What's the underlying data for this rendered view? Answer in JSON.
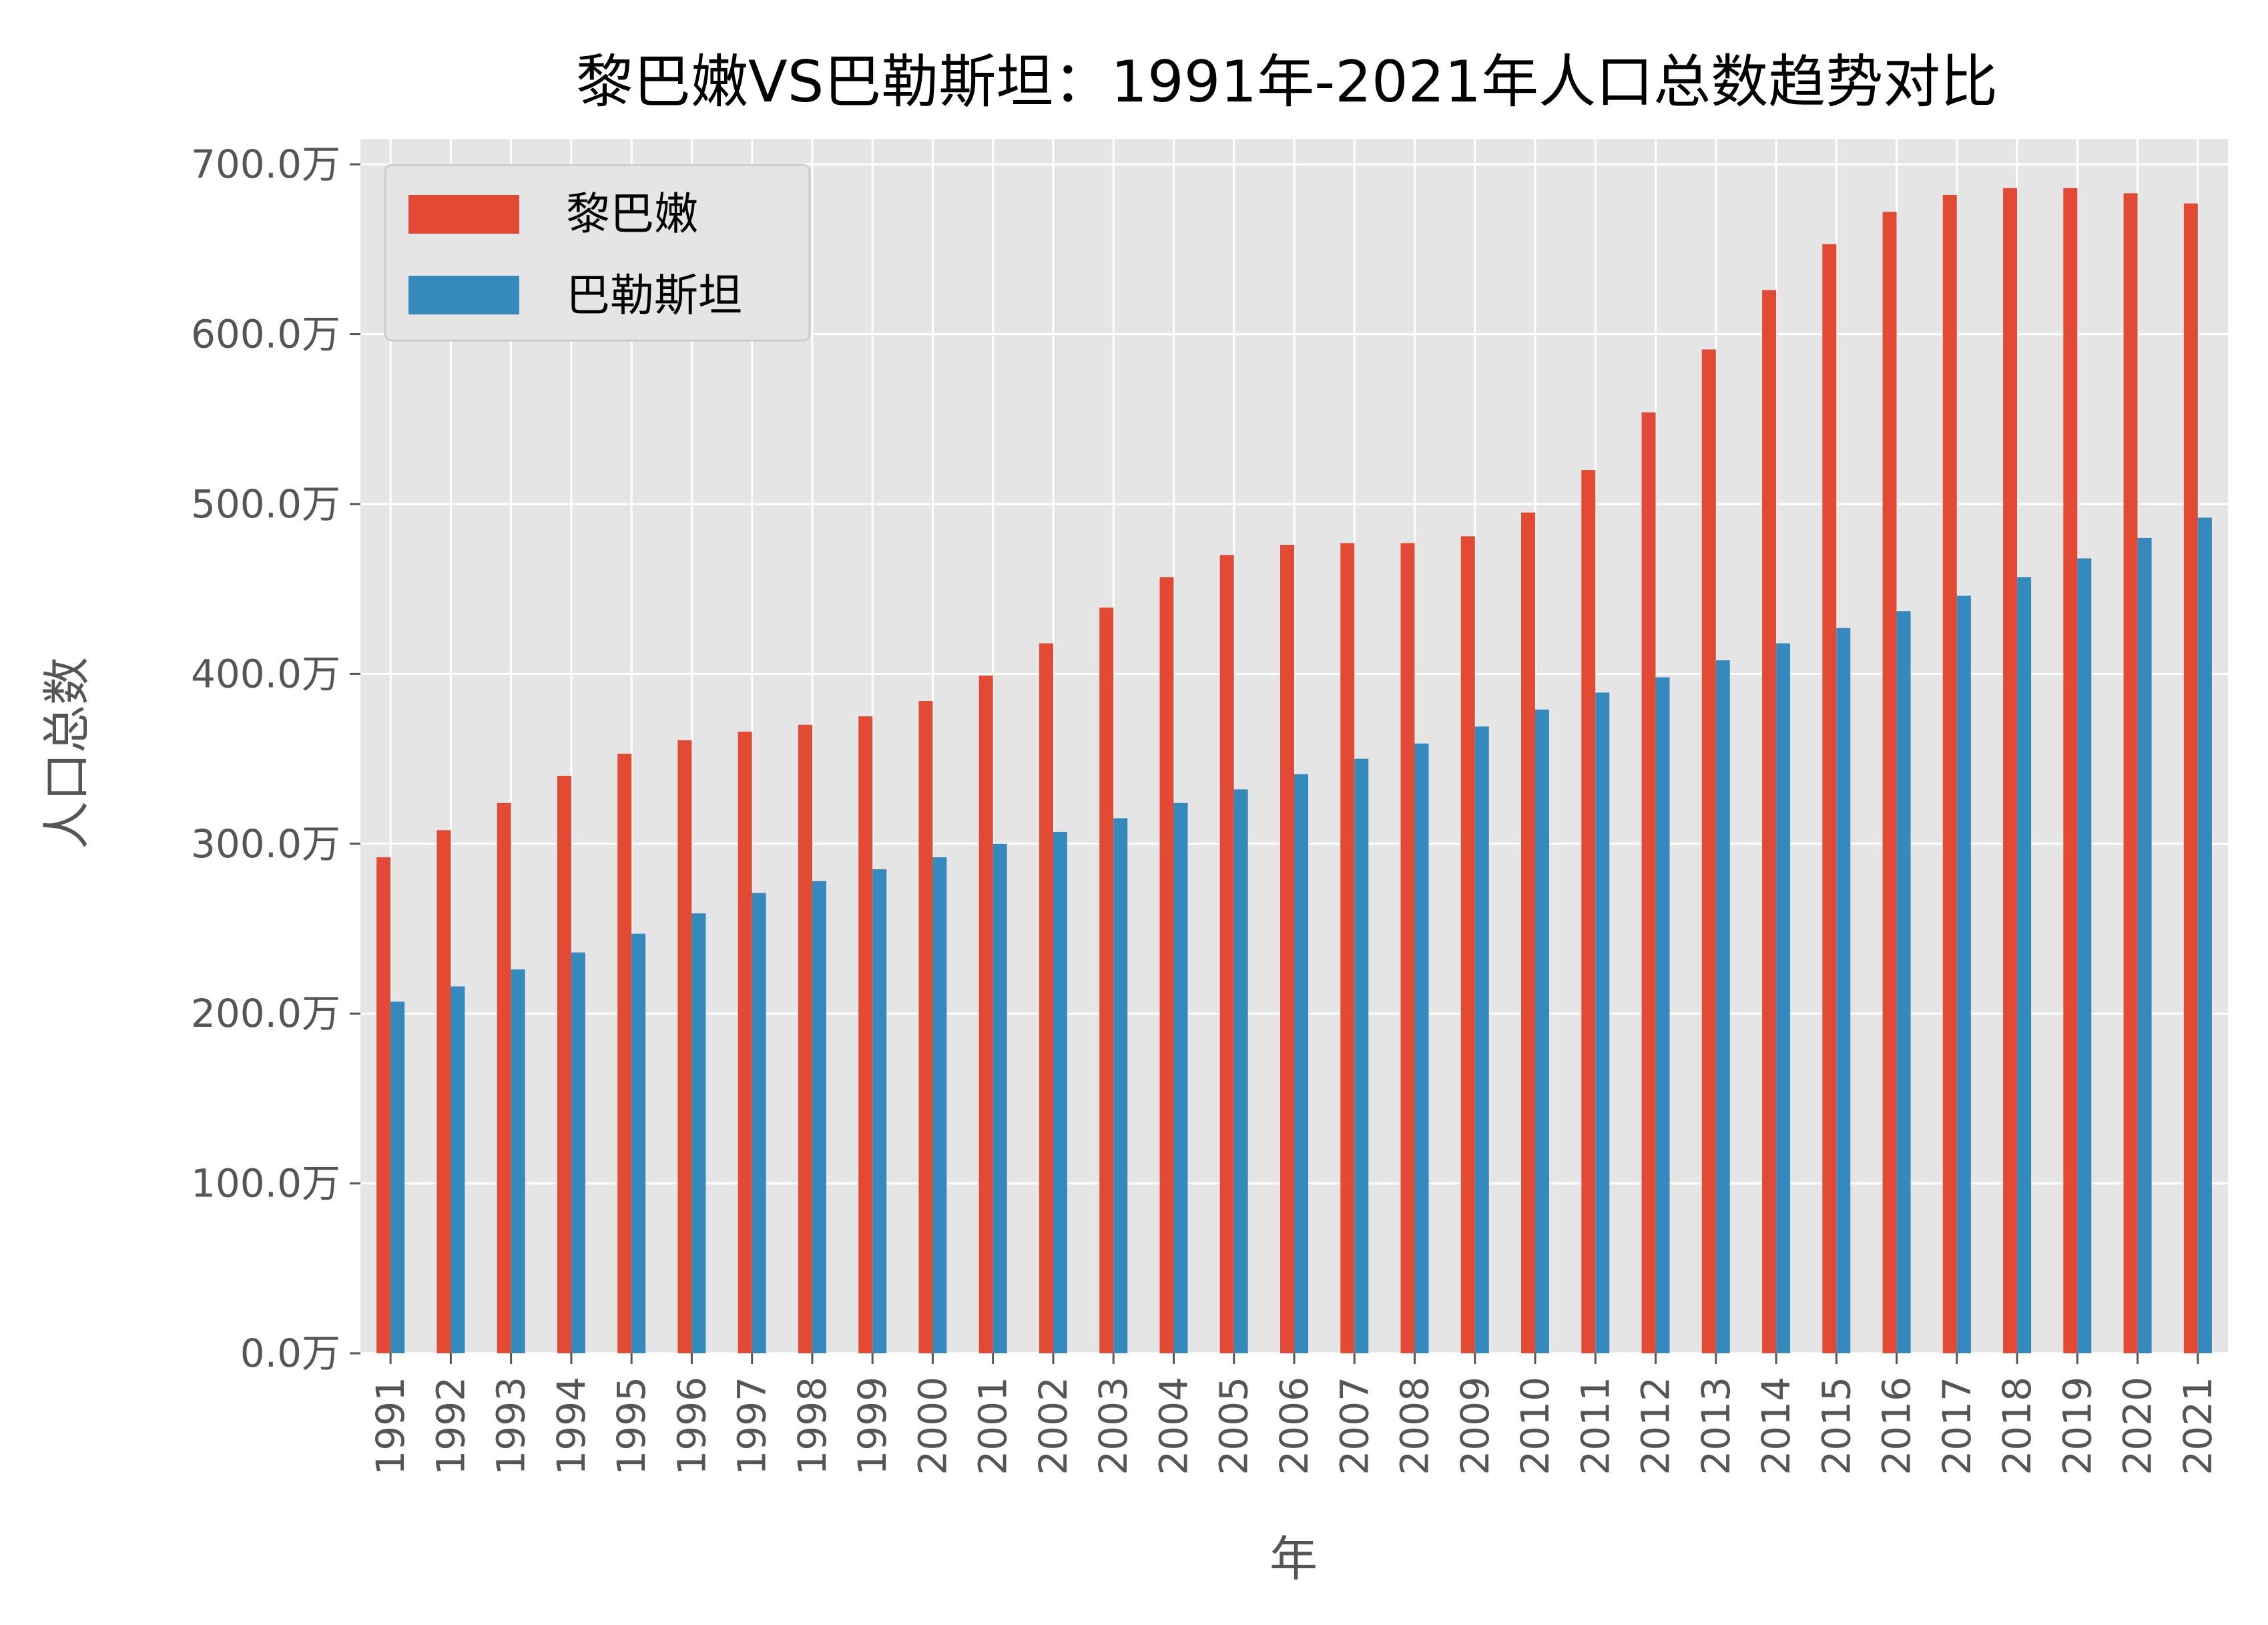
{
  "chart_data": {
    "type": "bar",
    "title": "黎巴嫩VS巴勒斯坦：1991年-2021年人口总数趋势对比",
    "xlabel": "年",
    "ylabel": "人口总数",
    "y_unit_suffix": "万",
    "ylim": [
      0,
      715
    ],
    "y_ticks": [
      0,
      100,
      200,
      300,
      400,
      500,
      600,
      700
    ],
    "y_tick_labels": [
      "0.0万",
      "100.0万",
      "200.0万",
      "300.0万",
      "400.0万",
      "500.0万",
      "600.0万",
      "700.0万"
    ],
    "grid": true,
    "legend_position": "top-left",
    "categories": [
      "1991",
      "1992",
      "1993",
      "1994",
      "1995",
      "1996",
      "1997",
      "1998",
      "1999",
      "2000",
      "2001",
      "2002",
      "2003",
      "2004",
      "2005",
      "2006",
      "2007",
      "2008",
      "2009",
      "2010",
      "2011",
      "2012",
      "2013",
      "2014",
      "2015",
      "2016",
      "2017",
      "2018",
      "2019",
      "2020",
      "2021"
    ],
    "series": [
      {
        "name": "黎巴嫩",
        "color": "#E24A33",
        "values": [
          292,
          308,
          324,
          340,
          353,
          361,
          366,
          370,
          375,
          384,
          399,
          418,
          439,
          457,
          470,
          476,
          477,
          477,
          481,
          495,
          520,
          554,
          591,
          626,
          653,
          672,
          682,
          686,
          686,
          683,
          677
        ]
      },
      {
        "name": "巴勒斯坦",
        "color": "#348ABD",
        "values": [
          207,
          216,
          226,
          236,
          247,
          259,
          271,
          278,
          285,
          292,
          300,
          307,
          315,
          324,
          332,
          341,
          350,
          359,
          369,
          379,
          389,
          398,
          408,
          418,
          427,
          437,
          446,
          457,
          468,
          480,
          492
        ]
      }
    ]
  },
  "style": {
    "plot_background": "#E5E5E5",
    "grid_color": "#FFFFFF",
    "text_color": "#555555",
    "title_color": "#000000"
  }
}
